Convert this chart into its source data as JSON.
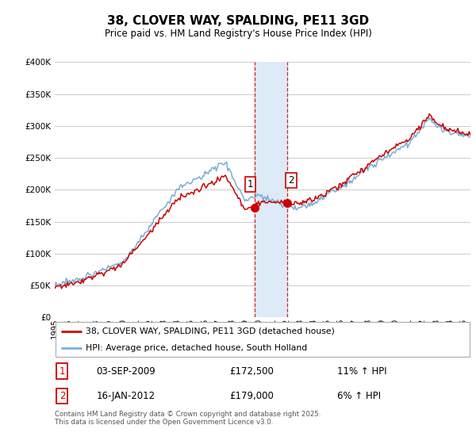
{
  "title": "38, CLOVER WAY, SPALDING, PE11 3GD",
  "subtitle": "Price paid vs. HM Land Registry's House Price Index (HPI)",
  "legend_line1": "38, CLOVER WAY, SPALDING, PE11 3GD (detached house)",
  "legend_line2": "HPI: Average price, detached house, South Holland",
  "sale1_date": "03-SEP-2009",
  "sale1_price": 172500,
  "sale1_hpi": "11% ↑ HPI",
  "sale2_date": "16-JAN-2012",
  "sale2_price": 179000,
  "sale2_hpi": "6% ↑ HPI",
  "footer": "Contains HM Land Registry data © Crown copyright and database right 2025.\nThis data is licensed under the Open Government Licence v3.0.",
  "ylim": [
    0,
    400000
  ],
  "yticks": [
    0,
    50000,
    100000,
    150000,
    200000,
    250000,
    300000,
    350000,
    400000
  ],
  "red_color": "#cc0000",
  "blue_color": "#7aaed6",
  "shade_color": "#ddeaf7",
  "background_color": "#ffffff",
  "grid_color": "#cccccc",
  "sale1_year": 2009.667,
  "sale2_year": 2012.042,
  "xmin": 1995,
  "xmax": 2025.5
}
